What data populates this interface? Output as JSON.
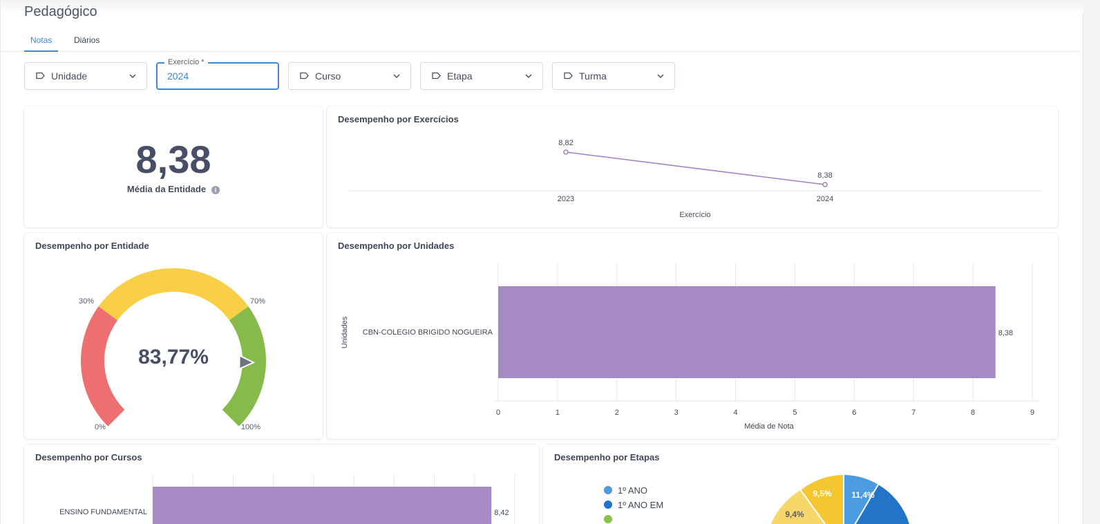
{
  "page": {
    "title": "Pedagógico"
  },
  "tabs": [
    {
      "label": "Notas"
    },
    {
      "label": "Diários"
    }
  ],
  "filters": {
    "unidade": "Unidade",
    "exercicio_label": "Exercício *",
    "exercicio_value": "2024",
    "curso": "Curso",
    "etapa": "Etapa",
    "turma": "Turma"
  },
  "kpi": {
    "value": "8,38",
    "label": "Média da Entidade"
  },
  "colors": {
    "accent": "#3b8ad9",
    "bar": "#a789c5",
    "line": "#a17fc2",
    "gauge_red": "#ee6f6f",
    "gauge_yellow": "#f8cf47",
    "gauge_green": "#86bb4b"
  },
  "exercicios_chart": {
    "title": "Desempenho por Exercícios",
    "xlabel": "Exercício",
    "chart_data": {
      "type": "line",
      "categories": [
        "2023",
        "2024"
      ],
      "values": [
        8.82,
        8.38
      ],
      "value_labels": [
        "8,82",
        "8,38"
      ]
    }
  },
  "entidade_gauge": {
    "title": "Desempenho por Entidade",
    "value_label": "83,77%",
    "value": 83.77,
    "thresholds": [
      30,
      70
    ],
    "tick_labels": {
      "t0": "0%",
      "t30": "30%",
      "t70": "70%",
      "t100": "100%"
    }
  },
  "unidades_chart": {
    "title": "Desempenho por Unidades",
    "xlabel": "Média de Nota",
    "ylabel": "Unidades",
    "chart_data": {
      "type": "bar",
      "orientation": "horizontal",
      "categories": [
        "CBN-COLEGIO BRIGIDO NOGUEIRA"
      ],
      "values": [
        8.38
      ],
      "value_labels": [
        "8,38"
      ],
      "xlim": [
        0,
        9
      ],
      "ticks": [
        "0",
        "1",
        "2",
        "3",
        "4",
        "5",
        "6",
        "7",
        "8",
        "9"
      ]
    }
  },
  "cursos_chart": {
    "title": "Desempenho por Cursos",
    "chart_data": {
      "type": "bar",
      "orientation": "horizontal",
      "categories": [
        "ENSINO FUNDAMENTAL"
      ],
      "values": [
        8.42
      ],
      "value_labels": [
        "8,42"
      ],
      "xlim": [
        0,
        9
      ]
    }
  },
  "etapas_chart": {
    "title": "Desempenho por Etapas",
    "legend": [
      {
        "label": "1º ANO",
        "color": "#4a9be0"
      },
      {
        "label": "1º ANO EM",
        "color": "#2274c9"
      }
    ],
    "chart_data": {
      "type": "pie",
      "visible_slices": [
        {
          "label": "11,4%",
          "value": 11.4,
          "color": "#4a9be0"
        },
        {
          "label": "9,5%",
          "value": 9.5,
          "color": "#f5c62f"
        },
        {
          "label": "9,4%",
          "value": 9.4,
          "color": "#f8d76a"
        }
      ]
    }
  }
}
